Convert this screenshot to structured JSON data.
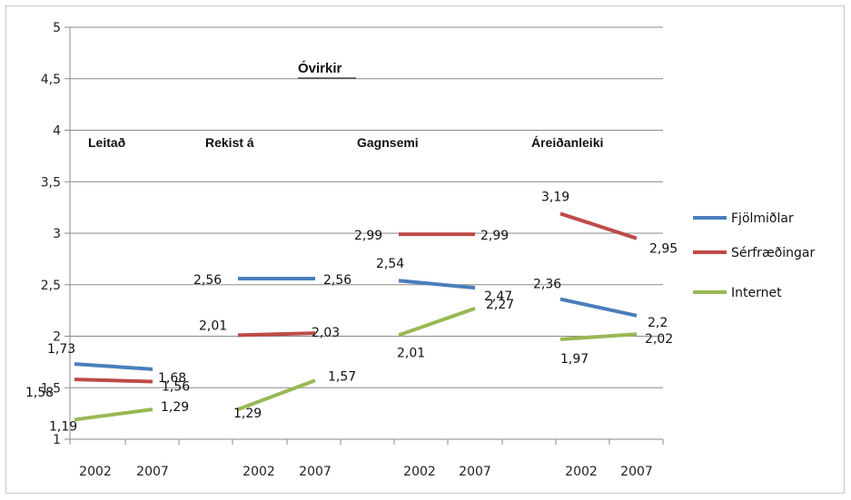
{
  "chart_data": {
    "type": "line",
    "title": "Óvirkir",
    "ylim": [
      1,
      5
    ],
    "yticks": [
      "1",
      "1,5",
      "2",
      "2,5",
      "3",
      "3,5",
      "4",
      "4,5",
      "5"
    ],
    "groups": [
      {
        "label": "Leitað",
        "years": [
          "2002",
          "2007"
        ]
      },
      {
        "label": "Rekist á",
        "years": [
          "2002",
          "2007"
        ]
      },
      {
        "label": "Gagnsemi",
        "years": [
          "2002",
          "2007"
        ]
      },
      {
        "label": "Áreiðanleiki",
        "years": [
          "2002",
          "2007"
        ]
      }
    ],
    "series": [
      {
        "name": "Fjölmiðlar",
        "color": "#4a7ebb",
        "values": [
          [
            1.73,
            1.68
          ],
          [
            2.56,
            2.56
          ],
          [
            2.54,
            2.47
          ],
          [
            2.36,
            2.2
          ]
        ],
        "labels": [
          [
            "1,73",
            "1,68"
          ],
          [
            "2,56",
            "2,56"
          ],
          [
            "2,54",
            "2,47"
          ],
          [
            "2,36",
            "2,2"
          ]
        ]
      },
      {
        "name": "Sérfræðingar",
        "color": "#be4b48",
        "values": [
          [
            1.58,
            1.56
          ],
          [
            2.01,
            2.03
          ],
          [
            2.99,
            2.99
          ],
          [
            3.19,
            2.95
          ]
        ],
        "labels": [
          [
            "1,58",
            "1,56"
          ],
          [
            "2,01",
            "2,03"
          ],
          [
            "2,99",
            "2,99"
          ],
          [
            "3,19",
            "2,95"
          ]
        ]
      },
      {
        "name": "Internet",
        "color": "#98b954",
        "values": [
          [
            1.19,
            1.29
          ],
          [
            1.29,
            1.57
          ],
          [
            2.01,
            2.27
          ],
          [
            1.97,
            2.02
          ]
        ],
        "labels": [
          [
            "1,19",
            "1,29"
          ],
          [
            "1,29",
            "1,57"
          ],
          [
            "2,01",
            "2,27"
          ],
          [
            "1,97",
            "2,02"
          ]
        ]
      }
    ],
    "grid": true,
    "legend_position": "right"
  }
}
